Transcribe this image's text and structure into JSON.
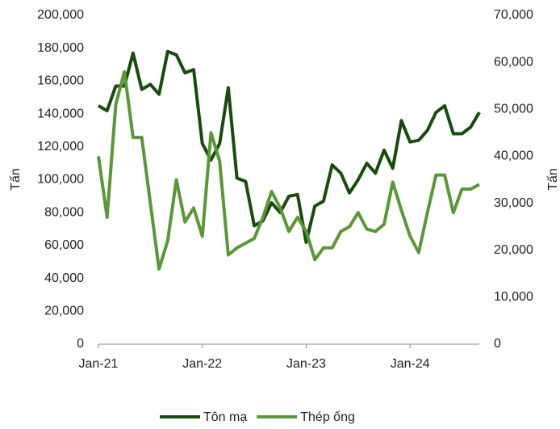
{
  "chart_data": {
    "type": "line",
    "y_label": "Tấn",
    "y2_label": "Tấn",
    "categories": [
      "Jan-21",
      null,
      null,
      null,
      null,
      null,
      null,
      null,
      null,
      null,
      null,
      null,
      "Jan-22",
      null,
      null,
      null,
      null,
      null,
      null,
      null,
      null,
      null,
      null,
      null,
      "Jan-23",
      null,
      null,
      null,
      null,
      null,
      null,
      null,
      null,
      null,
      null,
      null,
      "Jan-24",
      null,
      null,
      null,
      null,
      null,
      null,
      null,
      null
    ],
    "series": [
      {
        "name": "Tôn mạ",
        "color": "#1b4a0e",
        "values": [
          145000,
          142000,
          157000,
          157000,
          177000,
          155000,
          158000,
          152000,
          178000,
          176000,
          165000,
          167000,
          122000,
          112000,
          122000,
          156000,
          101000,
          99000,
          72000,
          75000,
          86000,
          80000,
          90000,
          91000,
          62000,
          84000,
          87000,
          109000,
          104000,
          92000,
          100000,
          110000,
          104000,
          118000,
          107000,
          136000,
          123000,
          124000,
          130000,
          141000,
          145000,
          128000,
          128000,
          132000,
          141000
        ]
      },
      {
        "name": "Thép ống",
        "color": "#5a963a",
        "axis": "y2",
        "values": [
          40000,
          27000,
          51000,
          58000,
          44000,
          44000,
          30000,
          16000,
          22000,
          35000,
          26000,
          29000,
          23000,
          45000,
          39000,
          19000,
          20500,
          21500,
          22500,
          27000,
          32500,
          29000,
          24000,
          27000,
          24000,
          18000,
          20500,
          20500,
          24000,
          25000,
          28000,
          24500,
          24000,
          25500,
          34500,
          28500,
          23000,
          19500,
          28000,
          36000,
          36000,
          28000,
          33000,
          33000,
          34000
        ]
      }
    ],
    "ylim": [
      0,
      200000
    ],
    "yticks": [
      0,
      {
        "value": 20000,
        "label": "20,000"
      },
      {
        "value": 40000,
        "label": "40,000"
      },
      {
        "value": 60000,
        "label": "60,000"
      },
      {
        "value": 80000,
        "label": "80,000"
      },
      {
        "value": 100000,
        "label": "100,000"
      },
      {
        "value": 120000,
        "label": "120,000"
      },
      {
        "value": 140000,
        "label": "140,000"
      },
      {
        "value": 160000,
        "label": "160,000"
      },
      {
        "value": 180000,
        "label": "180,000"
      },
      {
        "value": 200000,
        "label": "200,000"
      }
    ],
    "y2lim": [
      0,
      70000
    ],
    "y2ticks": [
      0,
      {
        "value": 10000,
        "label": "10,000"
      },
      {
        "value": 20000,
        "label": "20,000"
      },
      {
        "value": 30000,
        "label": "30,000"
      },
      {
        "value": 40000,
        "label": "40,000"
      },
      {
        "value": 50000,
        "label": "50,000"
      },
      {
        "value": 60000,
        "label": "60,000"
      },
      {
        "value": 70000,
        "label": "70,000"
      }
    ],
    "grid": false,
    "legend": "bottom"
  }
}
